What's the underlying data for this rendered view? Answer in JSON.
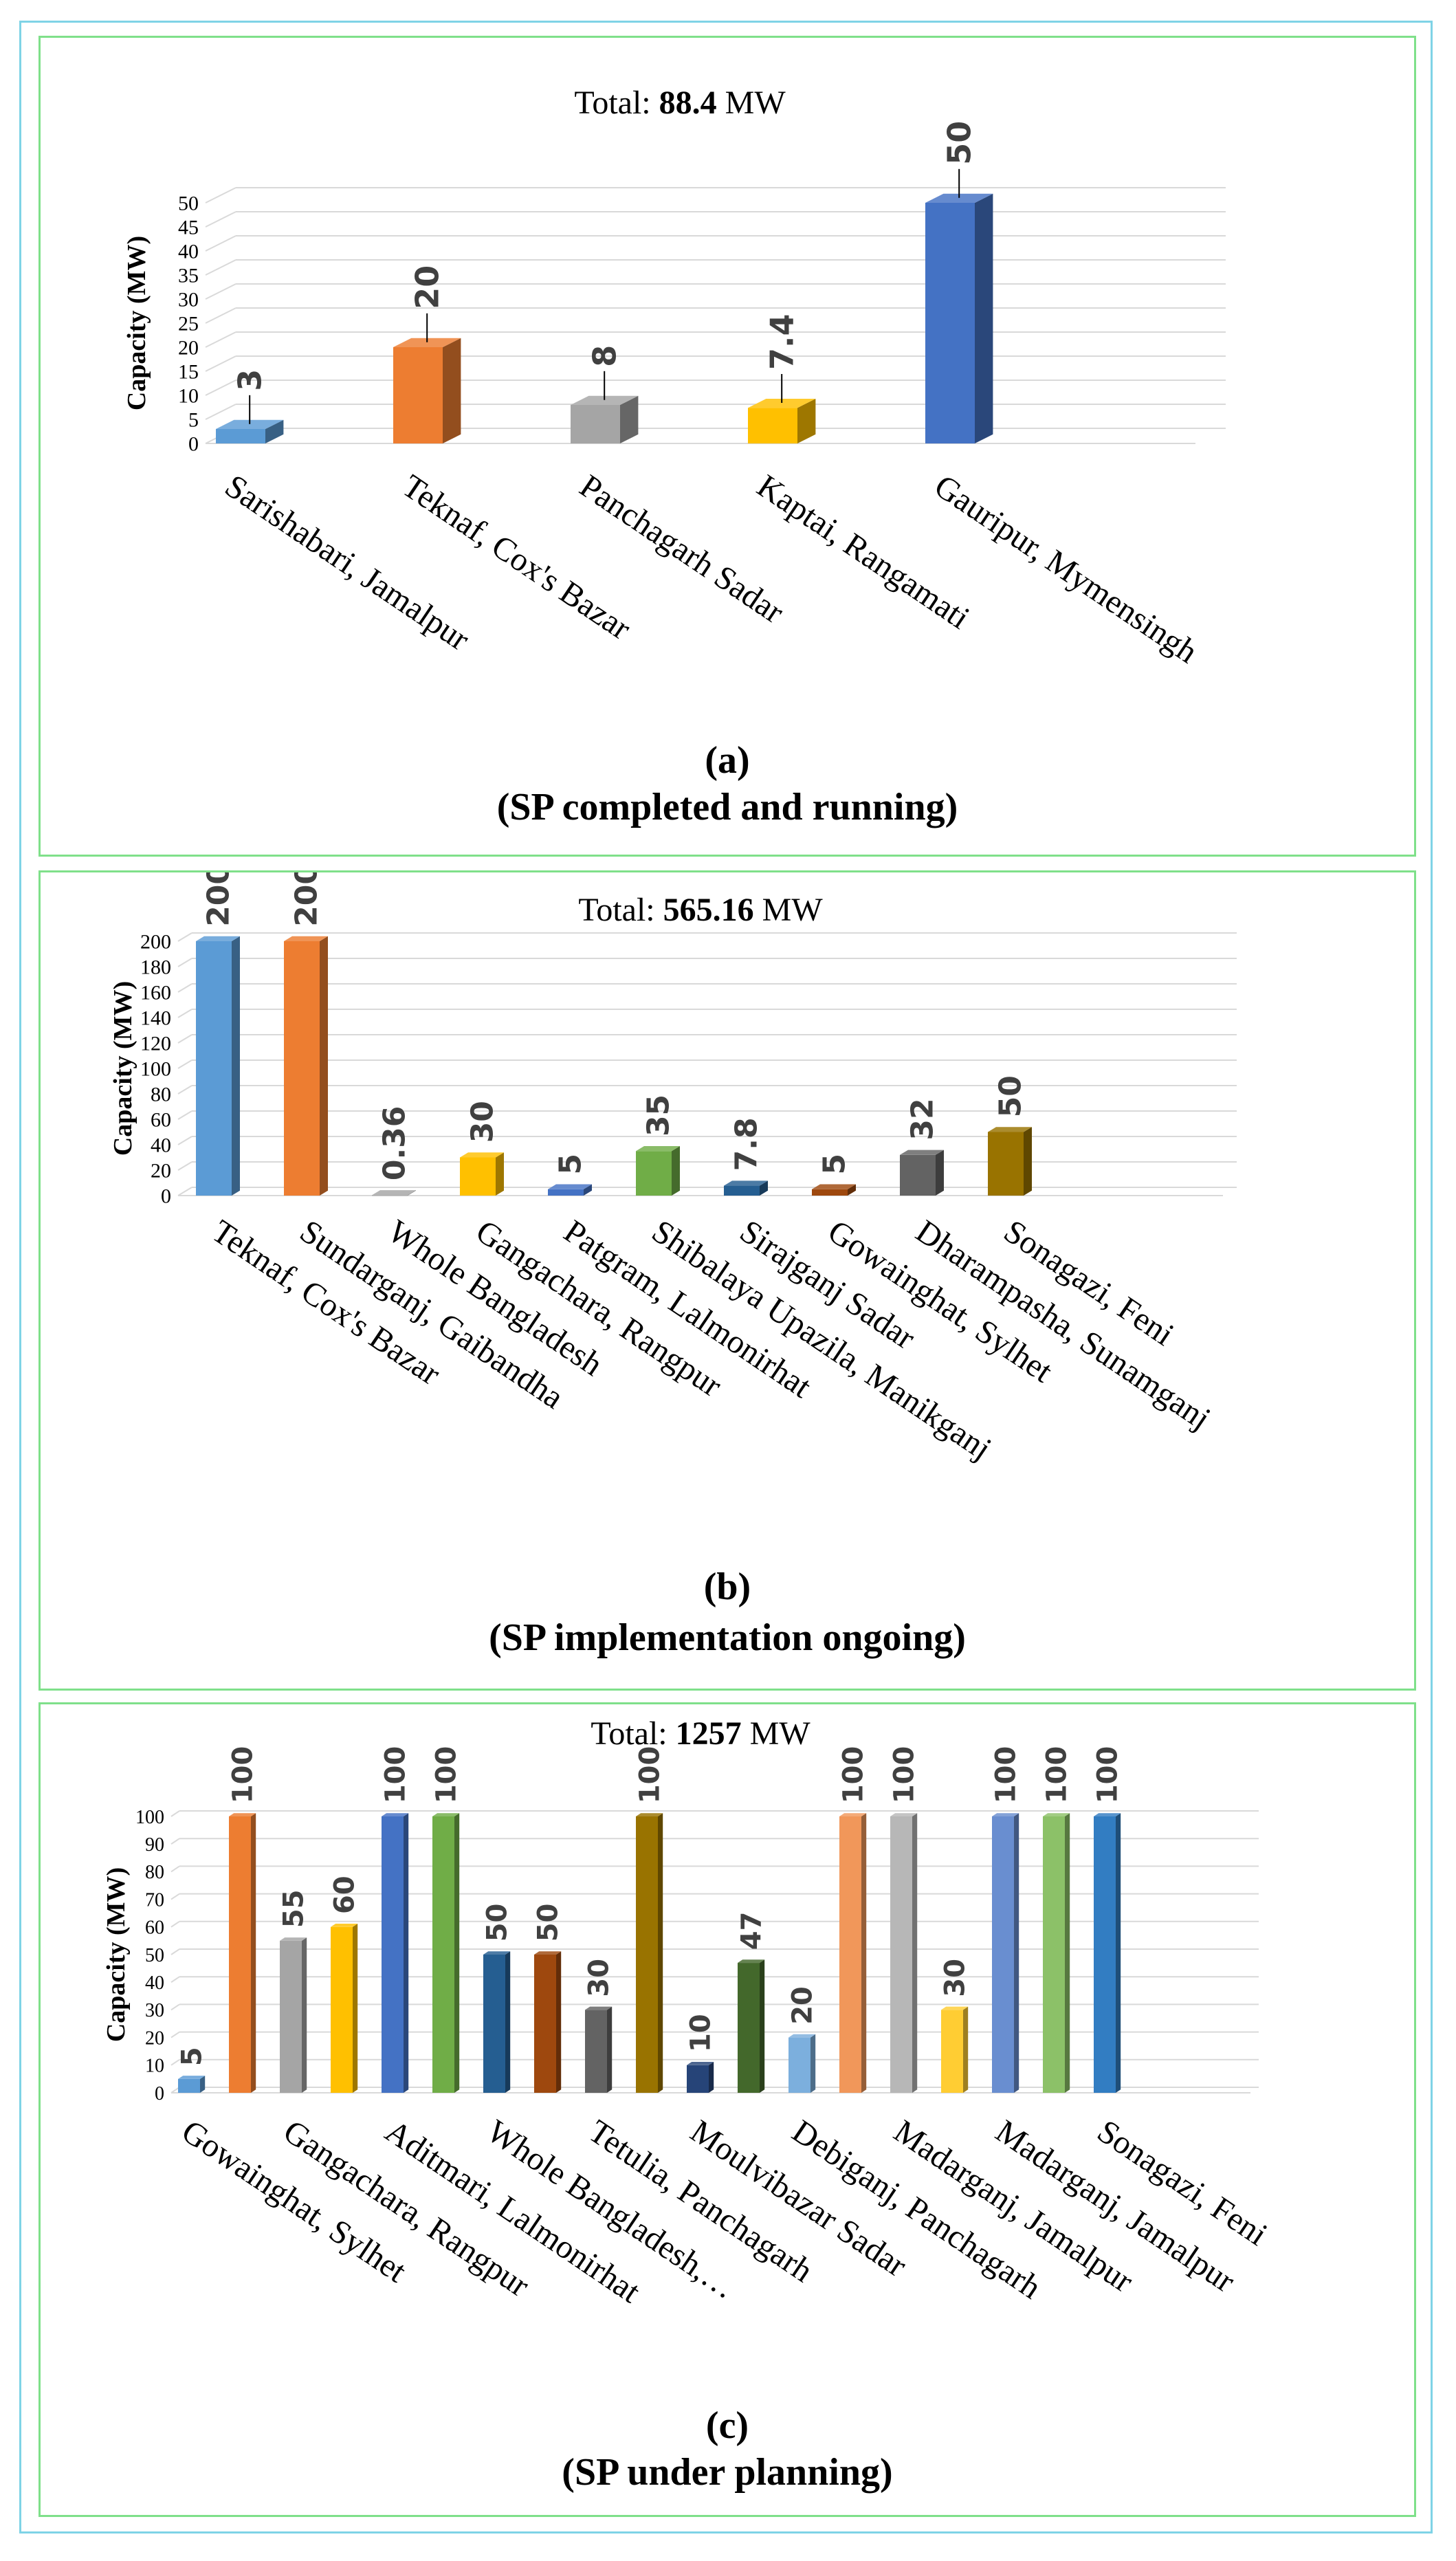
{
  "panels": [
    {
      "id": "a",
      "letter": "(a)",
      "caption": "(SP completed and running)",
      "total_prefix": "Total: ",
      "total_value": "88.4",
      "total_unit": " MW",
      "chart_data": {
        "type": "bar",
        "title": "Total: 88.4 MW",
        "ylabel": "Capacity (MW)",
        "xlabel": "",
        "ylim": [
          0,
          50
        ],
        "yticks": [
          0,
          5,
          10,
          15,
          20,
          25,
          30,
          35,
          40,
          45,
          50
        ],
        "categories": [
          "Sarishabari, Jamalpur",
          "Teknaf, Cox's Bazar",
          "Panchagarh Sadar",
          "Kaptai, Rangamati",
          "Gauripur, Mymensingh"
        ],
        "values": [
          3,
          20,
          8,
          7.4,
          50
        ],
        "value_labels": [
          "3",
          "20",
          "8",
          "7.4",
          "50"
        ],
        "colors": [
          "#5b9bd5",
          "#ed7d31",
          "#a5a5a5",
          "#ffc000",
          "#4472c4"
        ]
      }
    },
    {
      "id": "b",
      "letter": "(b)",
      "caption": "(SP implementation ongoing)",
      "total_prefix": "Total: ",
      "total_value": "565.16",
      "total_unit": " MW",
      "chart_data": {
        "type": "bar",
        "title": "Total: 565.16 MW",
        "ylabel": "Capacity (MW)",
        "xlabel": "",
        "ylim": [
          0,
          200
        ],
        "yticks": [
          0,
          20,
          40,
          60,
          80,
          100,
          120,
          140,
          160,
          180,
          200
        ],
        "categories": [
          "Teknaf, Cox's Bazar",
          "Sundarganj, Gaibandha",
          "Whole Bangladesh",
          "Gangachara, Rangpur",
          "Patgram, Lalmonirhat",
          "Shibalaya Upazila, Manikganj",
          "Sirajganj Sadar",
          "Gowainghat, Sylhet",
          "Dharampasha, Sunamganj",
          "Sonagazi, Feni"
        ],
        "values": [
          200,
          200,
          0.36,
          30,
          5,
          35,
          7.8,
          5,
          32,
          50
        ],
        "value_labels": [
          "200",
          "200",
          "0.36",
          "30",
          "5",
          "35",
          "7.8",
          "5",
          "32",
          "50"
        ],
        "colors": [
          "#5b9bd5",
          "#ed7d31",
          "#a5a5a5",
          "#ffc000",
          "#4472c4",
          "#70ad47",
          "#255e91",
          "#9e480e",
          "#636363",
          "#997300"
        ]
      }
    },
    {
      "id": "c",
      "letter": "(c)",
      "caption": "(SP under planning)",
      "total_prefix": "Total: ",
      "total_value": "1257",
      "total_unit": " MW",
      "chart_data": {
        "type": "bar",
        "title": "Total: 1257 MW",
        "ylabel": "Capacity (MW)",
        "xlabel": "",
        "ylim": [
          0,
          100
        ],
        "yticks": [
          0,
          10,
          20,
          30,
          40,
          50,
          60,
          70,
          80,
          90,
          100
        ],
        "categories": [
          "Gowainghat, Sylhet",
          "",
          "Gangachara, Rangpur",
          "",
          "Aditmari, Lalmonirhat",
          "",
          "Whole Bangladesh,…",
          "",
          "Tetulia, Panchagarh",
          "",
          "Moulvibazar Sadar",
          "",
          "Debiganj, Panchagarh",
          "",
          "Madarganj, Jamalpur",
          "",
          "Madarganj, Jamalpur",
          "",
          "Sonagazi, Feni"
        ],
        "values": [
          5,
          100,
          55,
          60,
          100,
          100,
          50,
          50,
          30,
          100,
          10,
          47,
          20,
          100,
          100,
          30,
          100,
          100,
          100
        ],
        "value_labels": [
          "5",
          "100",
          "55",
          "60",
          "100",
          "100",
          "50",
          "50",
          "30",
          "100",
          "10",
          "47",
          "20",
          "100",
          "100",
          "30",
          "100",
          "100",
          "100"
        ],
        "colors": [
          "#5b9bd5",
          "#ed7d31",
          "#a5a5a5",
          "#ffc000",
          "#4472c4",
          "#70ad47",
          "#255e91",
          "#9e480e",
          "#636363",
          "#997300",
          "#264478",
          "#43682b",
          "#7cafdd",
          "#f1975a",
          "#b7b7b7",
          "#ffcd33",
          "#698ed0",
          "#8cc168",
          "#327dc2"
        ]
      }
    }
  ]
}
